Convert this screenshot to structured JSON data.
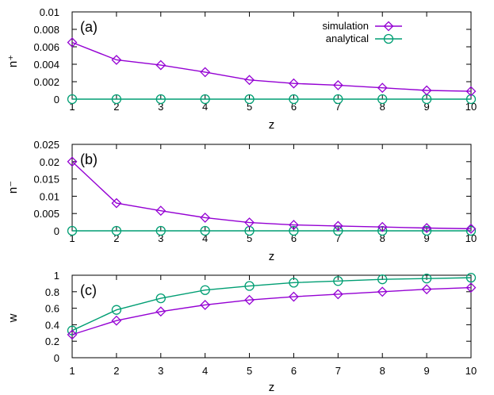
{
  "colors": {
    "simulation": "#9400d3",
    "analytical": "#009e73"
  },
  "chart_data": [
    {
      "type": "line",
      "panel_label": "(a)",
      "xlabel": "z",
      "ylabel": "n⁺",
      "xlim": [
        1,
        10
      ],
      "ylim": [
        0,
        0.01
      ],
      "x_ticks": [
        1,
        2,
        3,
        4,
        5,
        6,
        7,
        8,
        9,
        10
      ],
      "y_ticks": [
        0,
        0.002,
        0.004,
        0.006,
        0.008,
        0.01
      ],
      "y_tick_labels": [
        "0",
        "0.002",
        "0.004",
        "0.006",
        "0.008",
        "0.01"
      ],
      "legend": {
        "placement": "top-right",
        "entries": [
          "simulation",
          "analytical"
        ]
      },
      "x": [
        1,
        2,
        3,
        4,
        5,
        6,
        7,
        8,
        9,
        10
      ],
      "series": [
        {
          "name": "simulation",
          "marker": "diamond",
          "values": [
            0.0065,
            0.0045,
            0.0039,
            0.0031,
            0.0022,
            0.0018,
            0.0016,
            0.0013,
            0.001,
            0.0009
          ]
        },
        {
          "name": "analytical",
          "marker": "circle",
          "values": [
            0,
            0,
            0,
            0,
            0,
            0,
            0,
            0,
            0,
            0
          ]
        }
      ]
    },
    {
      "type": "line",
      "panel_label": "(b)",
      "xlabel": "z",
      "ylabel": "n⁻",
      "xlim": [
        1,
        10
      ],
      "ylim": [
        0,
        0.025
      ],
      "x_ticks": [
        1,
        2,
        3,
        4,
        5,
        6,
        7,
        8,
        9,
        10
      ],
      "y_ticks": [
        0,
        0.005,
        0.01,
        0.015,
        0.02,
        0.025
      ],
      "y_tick_labels": [
        "0",
        "0.005",
        "0.01",
        "0.015",
        "0.02",
        "0.025"
      ],
      "x": [
        1,
        2,
        3,
        4,
        5,
        6,
        7,
        8,
        9,
        10
      ],
      "series": [
        {
          "name": "simulation",
          "marker": "diamond",
          "values": [
            0.02,
            0.008,
            0.0058,
            0.0038,
            0.0024,
            0.0017,
            0.0014,
            0.0011,
            0.0008,
            0.0006
          ]
        },
        {
          "name": "analytical",
          "marker": "circle",
          "values": [
            0,
            0,
            0,
            0,
            0,
            0,
            0,
            0,
            0,
            0
          ]
        }
      ]
    },
    {
      "type": "line",
      "panel_label": "(c)",
      "xlabel": "z",
      "ylabel": "w",
      "xlim": [
        1,
        10
      ],
      "ylim": [
        0,
        1
      ],
      "x_ticks": [
        1,
        2,
        3,
        4,
        5,
        6,
        7,
        8,
        9,
        10
      ],
      "y_ticks": [
        0,
        0.2,
        0.4,
        0.6,
        0.8,
        1
      ],
      "y_tick_labels": [
        "0",
        "0.2",
        "0.4",
        "0.6",
        "0.8",
        "1"
      ],
      "x": [
        1,
        2,
        3,
        4,
        5,
        6,
        7,
        8,
        9,
        10
      ],
      "series": [
        {
          "name": "simulation",
          "marker": "diamond",
          "values": [
            0.28,
            0.45,
            0.56,
            0.64,
            0.7,
            0.74,
            0.77,
            0.8,
            0.83,
            0.85
          ]
        },
        {
          "name": "analytical",
          "marker": "circle",
          "values": [
            0.33,
            0.58,
            0.72,
            0.82,
            0.87,
            0.91,
            0.93,
            0.95,
            0.96,
            0.97
          ]
        }
      ]
    }
  ]
}
